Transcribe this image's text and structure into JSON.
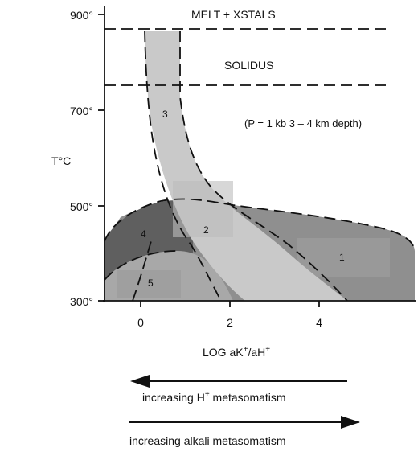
{
  "axes": {
    "y_label_main": "T",
    "y_label_unit": "°C",
    "x_label_main": "LOG aK",
    "x_label_sup1": "+",
    "x_label_mid": "/aH",
    "x_label_sup2": "+",
    "y_ticks": [
      "900°",
      "700°",
      "500°",
      "300°"
    ],
    "x_ticks": [
      "0",
      "2",
      "4"
    ]
  },
  "labels": {
    "melt": "MELT + XSTALS",
    "solidus": "SOLIDUS",
    "pressure": "(P = 1 kb 3 – 4 km depth)"
  },
  "regions": [
    "1",
    "2",
    "3",
    "4",
    "5"
  ],
  "arrows": {
    "h_text_main": "increasing H",
    "h_text_sup": "+",
    "h_text_tail": " metasomatism",
    "alkali_text": "increasing alkali metasomatism"
  },
  "colors": {
    "region1_fill": "#8f8f8f",
    "region4_fill": "#5f5f5f",
    "region5_fill": "#a8a8a8",
    "band_fill": "#c9c9c9",
    "ink": "#111111"
  }
}
